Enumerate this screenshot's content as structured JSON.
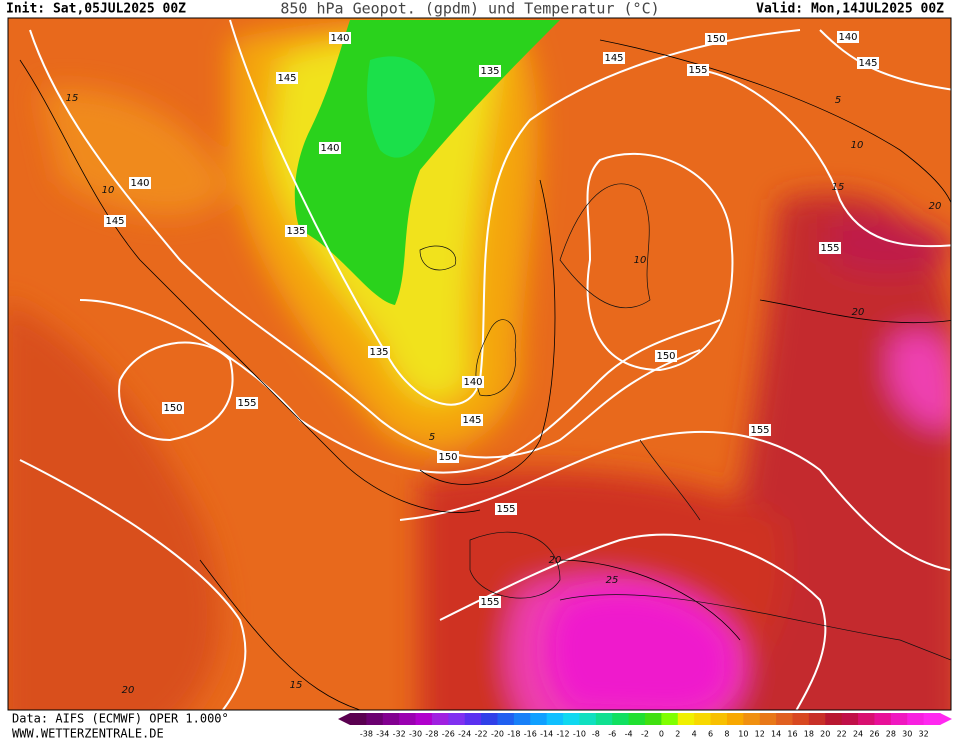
{
  "header": {
    "init": "Init: Sat,05JUL2025 00Z",
    "title": "850 hPa Geopot. (gpdm) und Temperatur (°C)",
    "valid": "Valid: Mon,14JUL2025 00Z"
  },
  "footer": {
    "source": "Data: AIFS (ECMWF) OPER 1.000°",
    "site": "WWW.WETTERZENTRALE.DE"
  },
  "map": {
    "geopotential_labels": [
      "140",
      "145",
      "140",
      "140",
      "145",
      "135",
      "135",
      "145",
      "150",
      "155",
      "140",
      "145",
      "155",
      "150",
      "135",
      "140",
      "145",
      "150",
      "150",
      "155",
      "155",
      "155",
      "155"
    ],
    "temperature_labels": [
      "15",
      "10",
      "5",
      "10",
      "15",
      "20",
      "20",
      "10",
      "5",
      "20",
      "25",
      "20",
      "15"
    ]
  },
  "colorbar": {
    "labels": [
      "-38",
      "-34",
      "-32",
      "-30",
      "-28",
      "-26",
      "-24",
      "-22",
      "-20",
      "-18",
      "-16",
      "-14",
      "-12",
      "-10",
      "-8",
      "-6",
      "-4",
      "-2",
      "0",
      "2",
      "4",
      "6",
      "8",
      "10",
      "12",
      "14",
      "16",
      "18",
      "20",
      "22",
      "24",
      "26",
      "28",
      "30",
      "32"
    ]
  }
}
